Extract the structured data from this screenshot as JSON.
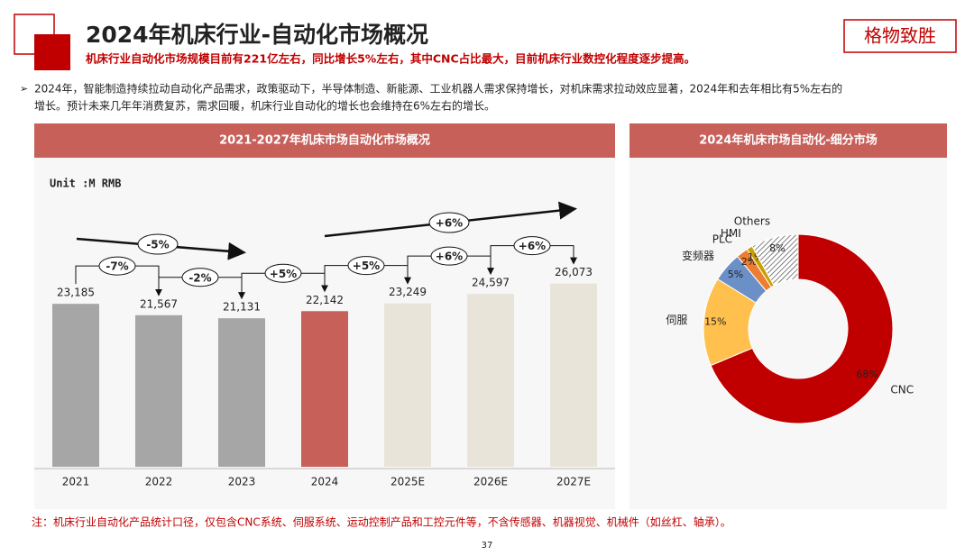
{
  "header": {
    "title": "2024年机床行业-自动化市场概况",
    "subtitle": "机床行业自动化市场规模目前有221亿左右，同比增长5%左右，其中CNC占比最大，目前机床行业数控化程度逐步提高。",
    "logo": "格物致胜"
  },
  "body": {
    "lines": [
      "2024年，智能制造持续拉动自动化产品需求，政策驱动下，半导体制造、新能源、工业机器人需求保持增长，对机床需求拉动效应显著，2024年和去年相比有5%左右的",
      "增长。预计未来几年年消费复苏，需求回暖，机床行业自动化的增长也会维持在6%左右的增长。"
    ]
  },
  "chart_data": [
    {
      "type": "bar",
      "title": "2021-2027年机床市场自动化市场概况",
      "unit": "Unit :M RMB",
      "categories": [
        "2021",
        "2022",
        "2023",
        "2024",
        "2025E",
        "2026E",
        "2027E"
      ],
      "values": [
        23185,
        21567,
        21131,
        22142,
        23249,
        24597,
        26073
      ],
      "value_labels": [
        "23,185",
        "21,567",
        "21,131",
        "22,142",
        "23,249",
        "24,597",
        "26,073"
      ],
      "colors": [
        "#a6a6a6",
        "#a6a6a6",
        "#a6a6a6",
        "#c8605a",
        "#e9e4da",
        "#e9e4da",
        "#e9e4da"
      ],
      "ylim": [
        0,
        30000
      ],
      "growth_labels": [
        "-7%",
        "-2%",
        "+5%",
        "+5%",
        "+6%",
        "+6%"
      ],
      "trend_labels": [
        "-5%",
        "+6%"
      ]
    },
    {
      "type": "donut",
      "title": "2024年机床市场自动化-细分市场",
      "categories": [
        "CNC",
        "伺服",
        "变频器",
        "PLC",
        "HMI",
        "Others"
      ],
      "values": [
        68,
        15,
        5,
        2,
        1,
        8
      ],
      "value_labels": [
        "68%",
        "15%",
        "5%",
        "2%",
        "1%",
        "8%"
      ],
      "colors": [
        "#c00000",
        "#ffc04d",
        "#6b8fc7",
        "#ed7d31",
        "#c9a000",
        "#ffffff"
      ],
      "hatch": [
        false,
        false,
        false,
        false,
        false,
        true
      ]
    }
  ],
  "footer": {
    "note": "注：机床行业自动化产品统计口径，仅包含CNC系统、伺服系统、运动控制产品和工控元件等，不含传感器、机器视觉、机械件（如丝杠、轴承）。",
    "page": "37"
  }
}
